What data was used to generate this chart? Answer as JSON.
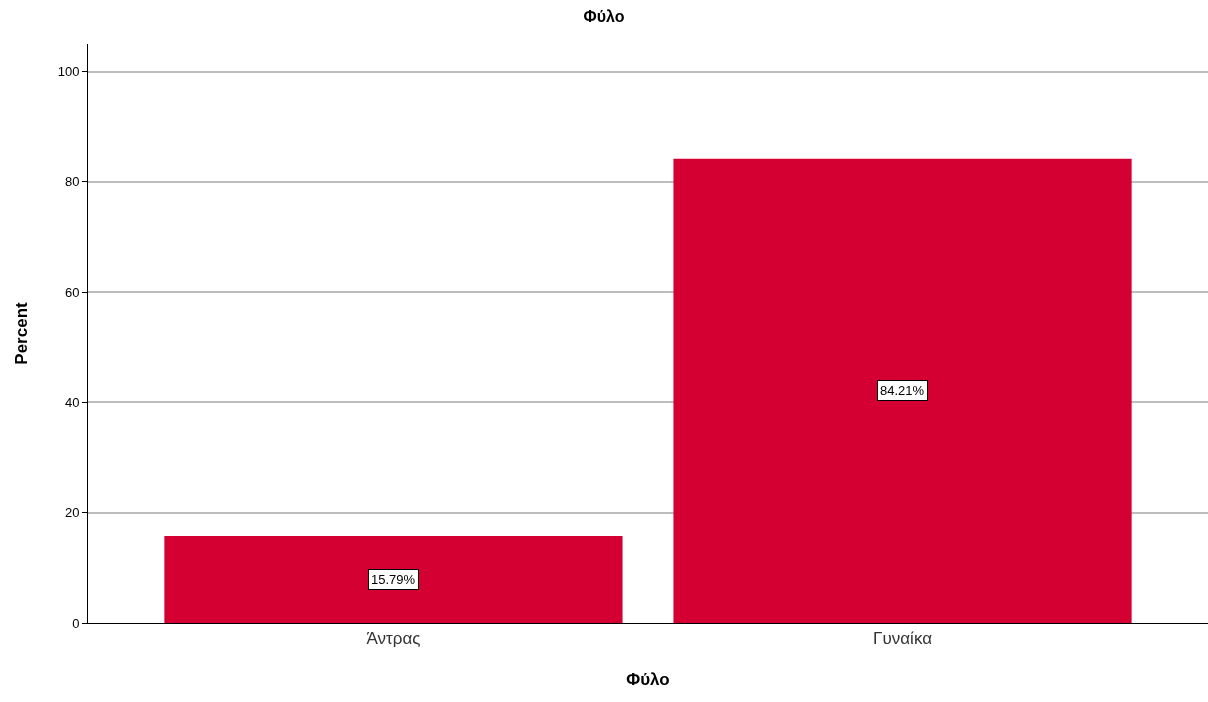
{
  "chart_data": {
    "type": "bar",
    "title": "Φύλο",
    "xlabel": "Φύλο",
    "ylabel": "Percent",
    "categories": [
      "Άντρας",
      "Γυναίκα"
    ],
    "values": [
      15.79,
      84.21
    ],
    "value_labels": [
      "15.79%",
      "84.21%"
    ],
    "color": "#d50032",
    "ylim": [
      0,
      105
    ],
    "yticks": [
      0,
      20,
      40,
      60,
      80,
      100
    ],
    "grid": "y"
  }
}
